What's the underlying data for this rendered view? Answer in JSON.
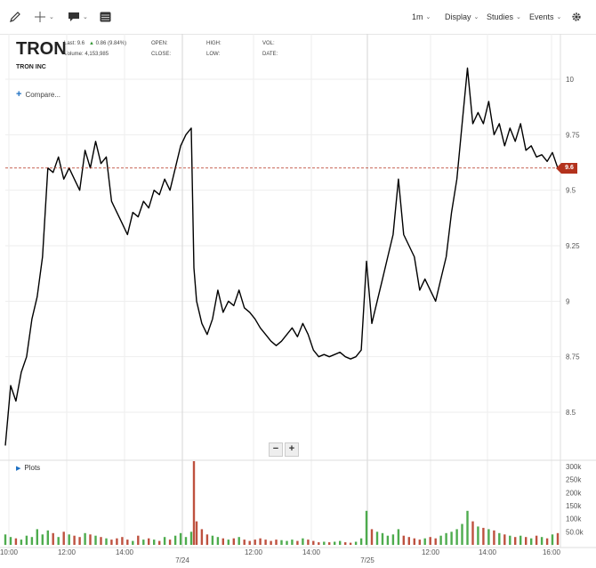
{
  "toolbar": {
    "pencil_icon": "pencil-icon",
    "crosshair_icon": "crosshair-icon",
    "comment_icon": "comment-icon",
    "table_icon": "table-icon",
    "interval": "1m",
    "display": "Display",
    "studies": "Studies",
    "events": "Events",
    "settings_icon": "gear-icon"
  },
  "header": {
    "ticker": "TRON",
    "company": "TRON INC",
    "last_label": "Last:",
    "last_value": "9.6",
    "change": "0.86 (9.84%)",
    "volume_label": "Volume:",
    "volume_value": "4,153,985",
    "open_label": "OPEN:",
    "close_label": "CLOSE:",
    "high_label": "HIGH:",
    "low_label": "LOW:",
    "vol_label": "VOL:",
    "date_label": "DATE:"
  },
  "compare_label": "Compare...",
  "plots_label": "Plots",
  "zoom": {
    "out": "−",
    "in": "+"
  },
  "current_price_label": "9.6",
  "colors": {
    "line": "#000000",
    "up_volume": "#2f9e2f",
    "down_volume": "#b3321d",
    "price_marker": "#b3321d",
    "grid": "#eeeeee"
  },
  "chart_data": {
    "type": "line",
    "y_ticks": [
      "8.5",
      "8.75",
      "9",
      "9.25",
      "9.5",
      "9.75",
      "10"
    ],
    "ylim": [
      8.4,
      10.1
    ],
    "x_ticks": [
      "10:00",
      "12:00",
      "14:00",
      "7/24",
      "12:00",
      "14:00",
      "7/25",
      "12:00",
      "14:00",
      "16:00"
    ],
    "current_price": 9.6,
    "series": [
      {
        "points": [
          [
            0,
            8.35
          ],
          [
            2,
            8.62
          ],
          [
            4,
            8.55
          ],
          [
            6,
            8.68
          ],
          [
            8,
            8.75
          ],
          [
            10,
            8.92
          ],
          [
            12,
            9.02
          ],
          [
            14,
            9.2
          ],
          [
            16,
            9.6
          ],
          [
            18,
            9.58
          ],
          [
            20,
            9.65
          ],
          [
            22,
            9.55
          ],
          [
            24,
            9.6
          ],
          [
            26,
            9.55
          ],
          [
            28,
            9.5
          ],
          [
            30,
            9.68
          ],
          [
            32,
            9.6
          ],
          [
            34,
            9.72
          ],
          [
            36,
            9.62
          ],
          [
            38,
            9.65
          ],
          [
            40,
            9.45
          ],
          [
            42,
            9.4
          ],
          [
            44,
            9.35
          ],
          [
            46,
            9.3
          ],
          [
            48,
            9.4
          ],
          [
            50,
            9.38
          ],
          [
            52,
            9.45
          ],
          [
            54,
            9.42
          ],
          [
            56,
            9.5
          ],
          [
            58,
            9.48
          ],
          [
            60,
            9.55
          ],
          [
            62,
            9.5
          ],
          [
            64,
            9.6
          ],
          [
            66,
            9.7
          ],
          [
            68,
            9.75
          ],
          [
            70,
            9.78
          ],
          [
            71,
            9.15
          ],
          [
            72,
            9.0
          ],
          [
            74,
            8.9
          ],
          [
            76,
            8.85
          ],
          [
            78,
            8.92
          ],
          [
            80,
            9.05
          ],
          [
            82,
            8.95
          ],
          [
            84,
            9.0
          ],
          [
            86,
            8.98
          ],
          [
            88,
            9.05
          ],
          [
            90,
            8.97
          ],
          [
            92,
            8.95
          ],
          [
            94,
            8.92
          ],
          [
            96,
            8.88
          ],
          [
            98,
            8.85
          ],
          [
            100,
            8.82
          ],
          [
            102,
            8.8
          ],
          [
            104,
            8.82
          ],
          [
            106,
            8.85
          ],
          [
            108,
            8.88
          ],
          [
            110,
            8.84
          ],
          [
            112,
            8.9
          ],
          [
            114,
            8.85
          ],
          [
            116,
            8.78
          ],
          [
            118,
            8.75
          ],
          [
            120,
            8.76
          ],
          [
            122,
            8.75
          ],
          [
            124,
            8.76
          ],
          [
            126,
            8.77
          ],
          [
            128,
            8.75
          ],
          [
            130,
            8.74
          ],
          [
            132,
            8.75
          ],
          [
            134,
            8.78
          ],
          [
            136,
            9.18
          ],
          [
            138,
            8.9
          ],
          [
            140,
            9.0
          ],
          [
            142,
            9.1
          ],
          [
            144,
            9.2
          ],
          [
            146,
            9.3
          ],
          [
            148,
            9.55
          ],
          [
            150,
            9.3
          ],
          [
            152,
            9.25
          ],
          [
            154,
            9.2
          ],
          [
            156,
            9.05
          ],
          [
            158,
            9.1
          ],
          [
            160,
            9.05
          ],
          [
            162,
            9.0
          ],
          [
            164,
            9.1
          ],
          [
            166,
            9.2
          ],
          [
            168,
            9.4
          ],
          [
            170,
            9.55
          ],
          [
            172,
            9.8
          ],
          [
            174,
            10.05
          ],
          [
            176,
            9.8
          ],
          [
            178,
            9.85
          ],
          [
            180,
            9.8
          ],
          [
            182,
            9.9
          ],
          [
            184,
            9.75
          ],
          [
            186,
            9.8
          ],
          [
            188,
            9.7
          ],
          [
            190,
            9.78
          ],
          [
            192,
            9.72
          ],
          [
            194,
            9.8
          ],
          [
            196,
            9.68
          ],
          [
            198,
            9.7
          ],
          [
            200,
            9.65
          ],
          [
            202,
            9.66
          ],
          [
            204,
            9.63
          ],
          [
            206,
            9.67
          ],
          [
            208,
            9.6
          ],
          [
            209,
            9.6
          ]
        ]
      }
    ],
    "volume_ticks": [
      "300k",
      "250k",
      "200k",
      "150k",
      "100k",
      "50.0k"
    ],
    "volume": [
      [
        0,
        40
      ],
      [
        2,
        30
      ],
      [
        4,
        25
      ],
      [
        6,
        20
      ],
      [
        8,
        35
      ],
      [
        10,
        30
      ],
      [
        12,
        60
      ],
      [
        14,
        40
      ],
      [
        16,
        55
      ],
      [
        18,
        45
      ],
      [
        20,
        30
      ],
      [
        22,
        50
      ],
      [
        24,
        40
      ],
      [
        26,
        35
      ],
      [
        28,
        30
      ],
      [
        30,
        45
      ],
      [
        32,
        40
      ],
      [
        34,
        35
      ],
      [
        36,
        30
      ],
      [
        38,
        25
      ],
      [
        40,
        20
      ],
      [
        42,
        25
      ],
      [
        44,
        30
      ],
      [
        46,
        20
      ],
      [
        48,
        15
      ],
      [
        50,
        35
      ],
      [
        52,
        20
      ],
      [
        54,
        25
      ],
      [
        56,
        20
      ],
      [
        58,
        15
      ],
      [
        60,
        30
      ],
      [
        62,
        20
      ],
      [
        64,
        35
      ],
      [
        66,
        45
      ],
      [
        68,
        30
      ],
      [
        70,
        50
      ],
      [
        71,
        320
      ],
      [
        72,
        90
      ],
      [
        74,
        60
      ],
      [
        76,
        40
      ],
      [
        78,
        35
      ],
      [
        80,
        30
      ],
      [
        82,
        25
      ],
      [
        84,
        20
      ],
      [
        86,
        25
      ],
      [
        88,
        30
      ],
      [
        90,
        20
      ],
      [
        92,
        15
      ],
      [
        94,
        20
      ],
      [
        96,
        25
      ],
      [
        98,
        20
      ],
      [
        100,
        15
      ],
      [
        102,
        20
      ],
      [
        104,
        18
      ],
      [
        106,
        15
      ],
      [
        108,
        20
      ],
      [
        110,
        15
      ],
      [
        112,
        25
      ],
      [
        114,
        20
      ],
      [
        116,
        15
      ],
      [
        118,
        10
      ],
      [
        120,
        12
      ],
      [
        122,
        10
      ],
      [
        124,
        12
      ],
      [
        126,
        15
      ],
      [
        128,
        10
      ],
      [
        130,
        8
      ],
      [
        132,
        12
      ],
      [
        134,
        25
      ],
      [
        136,
        130
      ],
      [
        138,
        60
      ],
      [
        140,
        50
      ],
      [
        142,
        45
      ],
      [
        144,
        35
      ],
      [
        146,
        40
      ],
      [
        148,
        60
      ],
      [
        150,
        35
      ],
      [
        152,
        30
      ],
      [
        154,
        25
      ],
      [
        156,
        20
      ],
      [
        158,
        25
      ],
      [
        160,
        30
      ],
      [
        162,
        25
      ],
      [
        164,
        35
      ],
      [
        166,
        45
      ],
      [
        168,
        50
      ],
      [
        170,
        60
      ],
      [
        172,
        80
      ],
      [
        174,
        130
      ],
      [
        176,
        90
      ],
      [
        178,
        70
      ],
      [
        180,
        65
      ],
      [
        182,
        60
      ],
      [
        184,
        55
      ],
      [
        186,
        45
      ],
      [
        188,
        40
      ],
      [
        190,
        35
      ],
      [
        192,
        30
      ],
      [
        194,
        35
      ],
      [
        196,
        30
      ],
      [
        198,
        25
      ],
      [
        200,
        35
      ],
      [
        202,
        30
      ],
      [
        204,
        25
      ],
      [
        206,
        40
      ],
      [
        208,
        45
      ]
    ]
  }
}
